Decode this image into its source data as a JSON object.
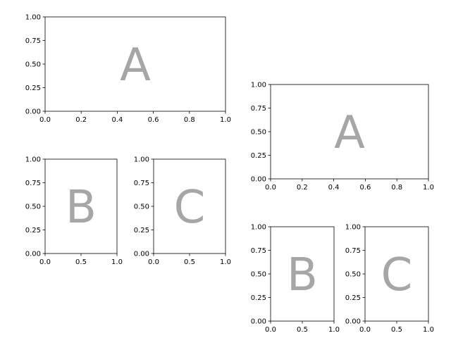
{
  "chart_data": [
    {
      "type": "blank",
      "annotation": "A",
      "xlim": [
        0,
        1
      ],
      "ylim": [
        0,
        1
      ],
      "xticks": [
        {
          "value": 0,
          "label": "0.0"
        },
        0.2,
        0.4,
        0.6,
        0.8,
        {
          "value": 1,
          "label": "1.0"
        }
      ],
      "yticks": [
        {
          "value": 0,
          "label": "0.00"
        },
        0.25,
        {
          "value": 0.5,
          "label": "0.50"
        },
        0.75,
        {
          "value": 1,
          "label": "1.00"
        }
      ]
    },
    {
      "type": "blank",
      "annotation": "B",
      "xlim": [
        0,
        1
      ],
      "ylim": [
        0,
        1
      ],
      "xticks": [
        {
          "value": 0,
          "label": "0.0"
        },
        0.5,
        {
          "value": 1,
          "label": "1.0"
        }
      ],
      "yticks": [
        {
          "value": 0,
          "label": "0.00"
        },
        0.25,
        {
          "value": 0.5,
          "label": "0.50"
        },
        0.75,
        {
          "value": 1,
          "label": "1.00"
        }
      ]
    },
    {
      "type": "blank",
      "annotation": "C",
      "xlim": [
        0,
        1
      ],
      "ylim": [
        0,
        1
      ],
      "xticks": [
        {
          "value": 0,
          "label": "0.0"
        },
        0.5,
        {
          "value": 1,
          "label": "1.0"
        }
      ],
      "yticks": [
        {
          "value": 0,
          "label": "0.00"
        },
        0.25,
        {
          "value": 0.5,
          "label": "0.50"
        },
        0.75,
        {
          "value": 1,
          "label": "1.00"
        }
      ]
    },
    {
      "type": "blank",
      "annotation": "A",
      "xlim": [
        0,
        1
      ],
      "ylim": [
        0,
        1
      ],
      "xticks": [
        {
          "value": 0,
          "label": "0.0"
        },
        0.2,
        0.4,
        0.6,
        0.8,
        {
          "value": 1,
          "label": "1.0"
        }
      ],
      "yticks": [
        {
          "value": 0,
          "label": "0.00"
        },
        0.25,
        {
          "value": 0.5,
          "label": "0.50"
        },
        0.75,
        {
          "value": 1,
          "label": "1.00"
        }
      ]
    },
    {
      "type": "blank",
      "annotation": "B",
      "xlim": [
        0,
        1
      ],
      "ylim": [
        0,
        1
      ],
      "xticks": [
        {
          "value": 0,
          "label": "0.0"
        },
        0.5,
        {
          "value": 1,
          "label": "1.0"
        }
      ],
      "yticks": [
        {
          "value": 0,
          "label": "0.00"
        },
        0.25,
        {
          "value": 0.5,
          "label": "0.50"
        },
        0.75,
        {
          "value": 1,
          "label": "1.00"
        }
      ]
    },
    {
      "type": "blank",
      "annotation": "C",
      "xlim": [
        0,
        1
      ],
      "ylim": [
        0,
        1
      ],
      "xticks": [
        {
          "value": 0,
          "label": "0.0"
        },
        0.5,
        {
          "value": 1,
          "label": "1.0"
        }
      ],
      "yticks": [
        {
          "value": 0,
          "label": "0.00"
        },
        0.25,
        {
          "value": 0.5,
          "label": "0.50"
        },
        0.75,
        {
          "value": 1,
          "label": "1.00"
        }
      ]
    }
  ]
}
